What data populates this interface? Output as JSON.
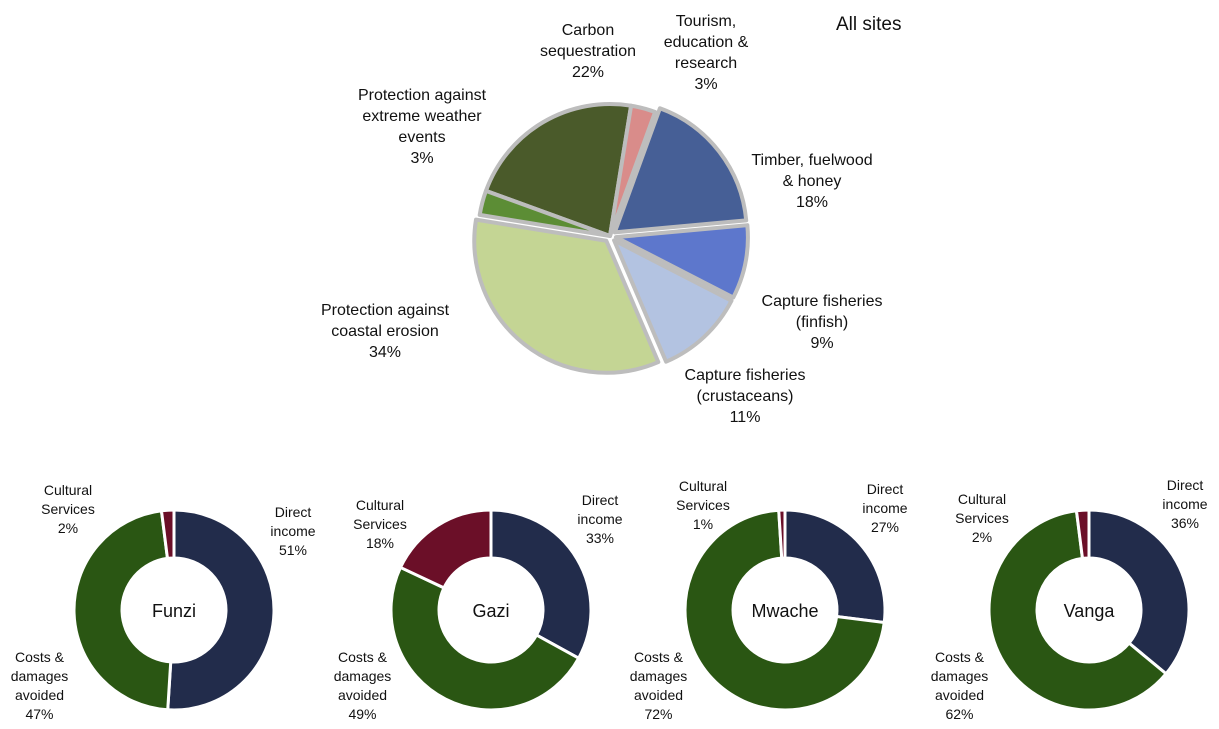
{
  "chart_data": [
    {
      "type": "pie",
      "title": "All sites",
      "categories": [
        "Carbon sequestration",
        "Tourism, education & research",
        "Timber, fuelwood & honey",
        "Capture fisheries (finfish)",
        "Capture fisheries (crustaceans)",
        "Protection against coastal erosion",
        "Protection against extreme weather events"
      ],
      "values": [
        22,
        3,
        18,
        9,
        11,
        34,
        3
      ],
      "colors": [
        "#4a5a2a",
        "#d98c8a",
        "#465f96",
        "#5d77cc",
        "#b3c3e1",
        "#c4d594",
        "#5c8d35"
      ],
      "labels": [
        [
          "Carbon",
          "sequestration",
          "22%"
        ],
        [
          "Tourism,",
          "education &",
          "research",
          "3%"
        ],
        [
          "Timber, fuelwood",
          "& honey",
          "18%"
        ],
        [
          "Capture fisheries",
          "(finfish)",
          "9%"
        ],
        [
          "Capture fisheries",
          "(crustaceans)",
          "11%"
        ],
        [
          "Protection against",
          "coastal erosion",
          "34%"
        ],
        [
          "Protection against",
          "extreme weather",
          "events",
          "3%"
        ]
      ]
    },
    {
      "type": "pie",
      "title": "Funzi",
      "categories": [
        "Direct income",
        "Costs & damages avoided",
        "Cultural Services"
      ],
      "values": [
        51,
        47,
        2
      ],
      "colors": [
        "#222c4b",
        "#2a5613",
        "#6b0f28"
      ],
      "labels": [
        [
          "Direct",
          "income",
          "51%"
        ],
        [
          "Costs &",
          "damages",
          "avoided",
          "47%"
        ],
        [
          "Cultural",
          "Services",
          "2%"
        ]
      ]
    },
    {
      "type": "pie",
      "title": "Gazi",
      "categories": [
        "Direct income",
        "Costs & damages avoided",
        "Cultural Services"
      ],
      "values": [
        33,
        49,
        18
      ],
      "colors": [
        "#222c4b",
        "#2a5613",
        "#6b0f28"
      ],
      "labels": [
        [
          "Direct",
          "income",
          "33%"
        ],
        [
          "Costs &",
          "damages",
          "avoided",
          "49%"
        ],
        [
          "Cultural",
          "Services",
          "18%"
        ]
      ]
    },
    {
      "type": "pie",
      "title": "Mwache",
      "categories": [
        "Direct income",
        "Costs & damages avoided",
        "Cultural Services"
      ],
      "values": [
        27,
        72,
        1
      ],
      "colors": [
        "#222c4b",
        "#2a5613",
        "#6b0f28"
      ],
      "labels": [
        [
          "Direct",
          "income",
          "27%"
        ],
        [
          "Costs &",
          "damages",
          "avoided",
          "72%"
        ],
        [
          "Cultural",
          "Services",
          "1%"
        ]
      ]
    },
    {
      "type": "pie",
      "title": "Vanga",
      "categories": [
        "Direct income",
        "Costs & damages avoided",
        "Cultural Services"
      ],
      "values": [
        36,
        62,
        2
      ],
      "colors": [
        "#222c4b",
        "#2a5613",
        "#6b0f28"
      ],
      "labels": [
        [
          "Direct",
          "income",
          "36%"
        ],
        [
          "Costs &",
          "damages",
          "avoided",
          "62%"
        ],
        [
          "Cultural",
          "Services",
          "2%"
        ]
      ]
    }
  ]
}
